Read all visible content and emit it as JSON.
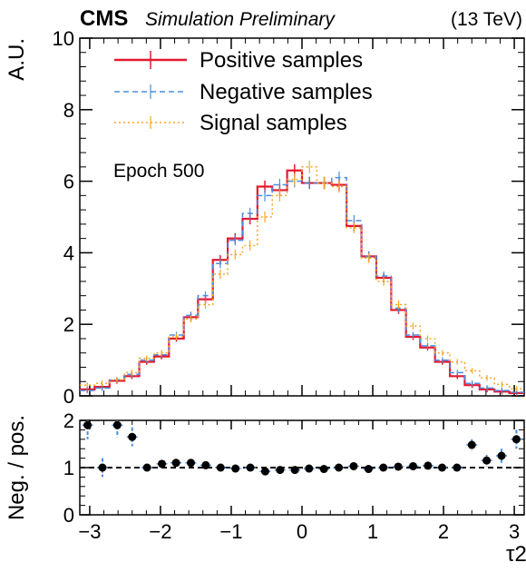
{
  "header": {
    "experiment": "CMS",
    "status": "Simulation Preliminary",
    "energy": "(13 TeV)"
  },
  "annotation": "Epoch 500",
  "chart_data": [
    {
      "type": "line",
      "ylabel": "A.U.",
      "xlabel": "τ2",
      "xlim": [
        -3.14,
        3.14
      ],
      "ylim": [
        0,
        10
      ],
      "xticks": [
        "−3",
        "−2",
        "−1",
        "0",
        "1",
        "2",
        "3"
      ],
      "yticks": [
        "0",
        "2",
        "4",
        "6",
        "8",
        "10"
      ],
      "legend_placement": "top-left",
      "bin_edges": [
        -3.14,
        -2.93,
        -2.72,
        -2.51,
        -2.3,
        -2.09,
        -1.88,
        -1.67,
        -1.47,
        -1.26,
        -1.05,
        -0.84,
        -0.63,
        -0.42,
        -0.21,
        0.0,
        0.21,
        0.42,
        0.63,
        0.84,
        1.05,
        1.26,
        1.47,
        1.67,
        1.88,
        2.09,
        2.3,
        2.51,
        2.72,
        2.93,
        3.14
      ],
      "series": [
        {
          "name": "Positive samples",
          "color": "#e31a2f",
          "style": "solid",
          "values": [
            0.18,
            0.25,
            0.42,
            0.55,
            0.95,
            1.1,
            1.6,
            2.2,
            2.7,
            3.8,
            4.4,
            4.95,
            5.85,
            5.75,
            6.3,
            5.95,
            5.95,
            5.9,
            4.75,
            3.9,
            3.3,
            2.4,
            1.65,
            1.35,
            0.95,
            0.55,
            0.3,
            0.18,
            0.12,
            0.08
          ]
        },
        {
          "name": "Negative samples",
          "color": "#4a8de0",
          "style": "dashed",
          "values": [
            0.15,
            0.22,
            0.45,
            0.6,
            1.0,
            1.15,
            1.7,
            2.25,
            2.8,
            3.7,
            4.35,
            5.1,
            5.6,
            5.9,
            6.0,
            5.95,
            5.95,
            6.1,
            4.9,
            3.9,
            3.35,
            2.45,
            1.7,
            1.4,
            1.0,
            0.65,
            0.35,
            0.22,
            0.15,
            0.1
          ]
        },
        {
          "name": "Signal samples",
          "color": "#f5a623",
          "style": "dotted",
          "values": [
            0.3,
            0.35,
            0.45,
            0.65,
            1.05,
            1.2,
            1.65,
            2.15,
            2.55,
            3.4,
            3.95,
            4.2,
            5.0,
            5.6,
            6.05,
            6.4,
            5.95,
            5.85,
            4.7,
            3.85,
            3.2,
            2.55,
            1.95,
            1.6,
            1.2,
            0.95,
            0.7,
            0.5,
            0.32,
            0.2
          ]
        }
      ]
    },
    {
      "type": "scatter",
      "ylabel": "Neg. / pos.",
      "xlabel": "τ2",
      "xlim": [
        -3.14,
        3.14
      ],
      "ylim": [
        0,
        2
      ],
      "yticks": [
        "0",
        "1",
        "2"
      ],
      "reference_line": 1,
      "x": [
        -3.03,
        -2.82,
        -2.61,
        -2.4,
        -2.19,
        -1.98,
        -1.78,
        -1.57,
        -1.36,
        -1.15,
        -0.94,
        -0.73,
        -0.52,
        -0.31,
        -0.1,
        0.1,
        0.31,
        0.52,
        0.73,
        0.94,
        1.15,
        1.36,
        1.57,
        1.78,
        1.98,
        2.19,
        2.4,
        2.61,
        2.82,
        3.03
      ],
      "values": [
        1.9,
        1.0,
        1.9,
        1.65,
        1.0,
        1.08,
        1.1,
        1.1,
        1.05,
        1.0,
        0.98,
        1.0,
        0.92,
        0.95,
        0.95,
        0.98,
        0.97,
        1.0,
        1.03,
        0.97,
        1.0,
        1.02,
        1.03,
        1.04,
        1.0,
        1.0,
        1.48,
        1.15,
        1.25,
        1.6
      ],
      "errors": [
        0.3,
        0.2,
        0.25,
        0.2,
        0.08,
        0.06,
        0.05,
        0.04,
        0.04,
        0.03,
        0.03,
        0.03,
        0.03,
        0.03,
        0.03,
        0.03,
        0.03,
        0.03,
        0.03,
        0.03,
        0.03,
        0.04,
        0.05,
        0.05,
        0.06,
        0.08,
        0.12,
        0.12,
        0.15,
        0.2
      ]
    }
  ]
}
